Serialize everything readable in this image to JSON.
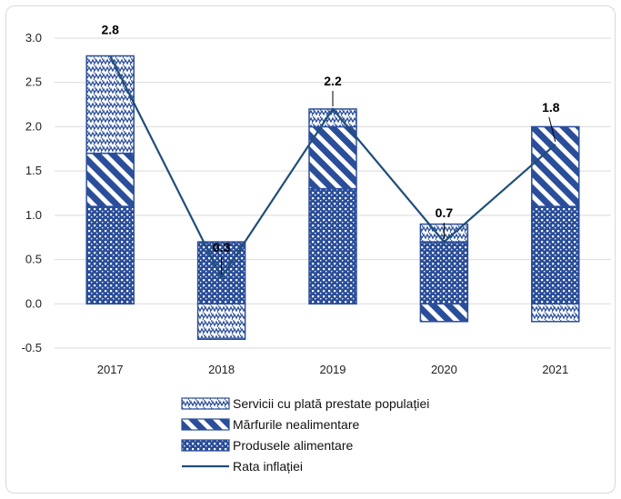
{
  "chart_data": {
    "type": "bar",
    "stacked": true,
    "categories": [
      "2017",
      "2018",
      "2019",
      "2020",
      "2021"
    ],
    "series": [
      {
        "name": "Produsele alimentare",
        "pattern": "dots",
        "values": [
          1.1,
          0.7,
          1.3,
          0.7,
          1.1
        ]
      },
      {
        "name": "Mărfurile nealimentare",
        "pattern": "diagonal-stripes",
        "values": [
          0.6,
          0.0,
          0.7,
          -0.2,
          0.9
        ]
      },
      {
        "name": "Servicii cu plată prestate  populației",
        "pattern": "zigzag",
        "values": [
          1.1,
          -0.4,
          0.2,
          0.2,
          -0.2
        ]
      }
    ],
    "line": {
      "name": "Rata inflației",
      "values": [
        2.8,
        0.3,
        2.2,
        0.7,
        1.8
      ],
      "labels": [
        "2.8",
        "0.3",
        "2.2",
        "0.7",
        "1.8"
      ]
    },
    "ylim": [
      -0.5,
      3.0
    ],
    "yticks": [
      "-0.5",
      "0.0",
      "0.5",
      "1.0",
      "1.5",
      "2.0",
      "2.5",
      "3.0"
    ],
    "grid": true,
    "legend_position": "bottom",
    "legend_order": [
      2,
      1,
      0,
      "line"
    ],
    "colors": {
      "bar": "#2b4e9a",
      "line": "#1f4e79",
      "grid": "#d9d9d9"
    },
    "xlabel": "",
    "ylabel": "",
    "title": ""
  }
}
